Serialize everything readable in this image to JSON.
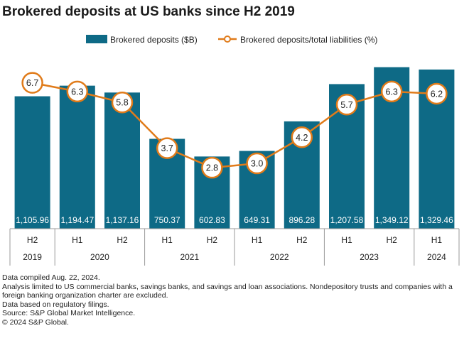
{
  "title": "Brokered deposits at US banks since H2 2019",
  "legend": {
    "bars_label": "Brokered deposits ($B)",
    "line_label": "Brokered deposits/total liabilities (%)"
  },
  "colors": {
    "bar": "#0e6a86",
    "line": "#e07b1a",
    "axis": "#999999",
    "bar_label": "#ffffff"
  },
  "chart_data": {
    "type": "bar",
    "title": "Brokered deposits at US banks since H2 2019",
    "categories": [
      "H2 2019",
      "H1 2020",
      "H2 2020",
      "H1 2021",
      "H2 2021",
      "H1 2022",
      "H2 2022",
      "H1 2023",
      "H2 2023",
      "H1 2024"
    ],
    "x_tick_halves": [
      "H2",
      "H1",
      "H2",
      "H1",
      "H2",
      "H1",
      "H2",
      "H1",
      "H2",
      "H1"
    ],
    "x_tick_years": [
      {
        "label": "2019",
        "span": 1
      },
      {
        "label": "2020",
        "span": 2
      },
      {
        "label": "2021",
        "span": 2
      },
      {
        "label": "2022",
        "span": 2
      },
      {
        "label": "2023",
        "span": 2
      },
      {
        "label": "2024",
        "span": 1
      }
    ],
    "series": [
      {
        "name": "Brokered deposits ($B)",
        "type": "bar",
        "axis": "left",
        "values": [
          1105.96,
          1194.47,
          1137.16,
          750.37,
          602.83,
          649.31,
          896.28,
          1207.58,
          1349.12,
          1329.46
        ],
        "labels": [
          "1,105.96",
          "1,194.47",
          "1,137.16",
          "750.37",
          "602.83",
          "649.31",
          "896.28",
          "1,207.58",
          "1,349.12",
          "1,329.46"
        ]
      },
      {
        "name": "Brokered deposits/total liabilities (%)",
        "type": "line",
        "axis": "right",
        "values": [
          6.7,
          6.3,
          5.8,
          3.7,
          2.8,
          3.0,
          4.2,
          5.7,
          6.3,
          6.2
        ],
        "labels": [
          "6.7",
          "6.3",
          "5.8",
          "3.7",
          "2.8",
          "3.0",
          "4.2",
          "5.7",
          "6.3",
          "6.2"
        ]
      }
    ],
    "ylim_left": [
      0,
      1400
    ],
    "ylim_right": [
      0,
      7.7
    ],
    "grid": false,
    "legend_position": "top-center"
  },
  "notes": [
    "Data compiled Aug. 22, 2024.",
    "Analysis limited to US commercial banks, savings banks, and savings and loan associations. Nondepository trusts and companies with a foreign banking organization charter are excluded.",
    "Data based on regulatory filings.",
    "Source: S&P Global Market Intelligence.",
    "© 2024 S&P Global."
  ]
}
